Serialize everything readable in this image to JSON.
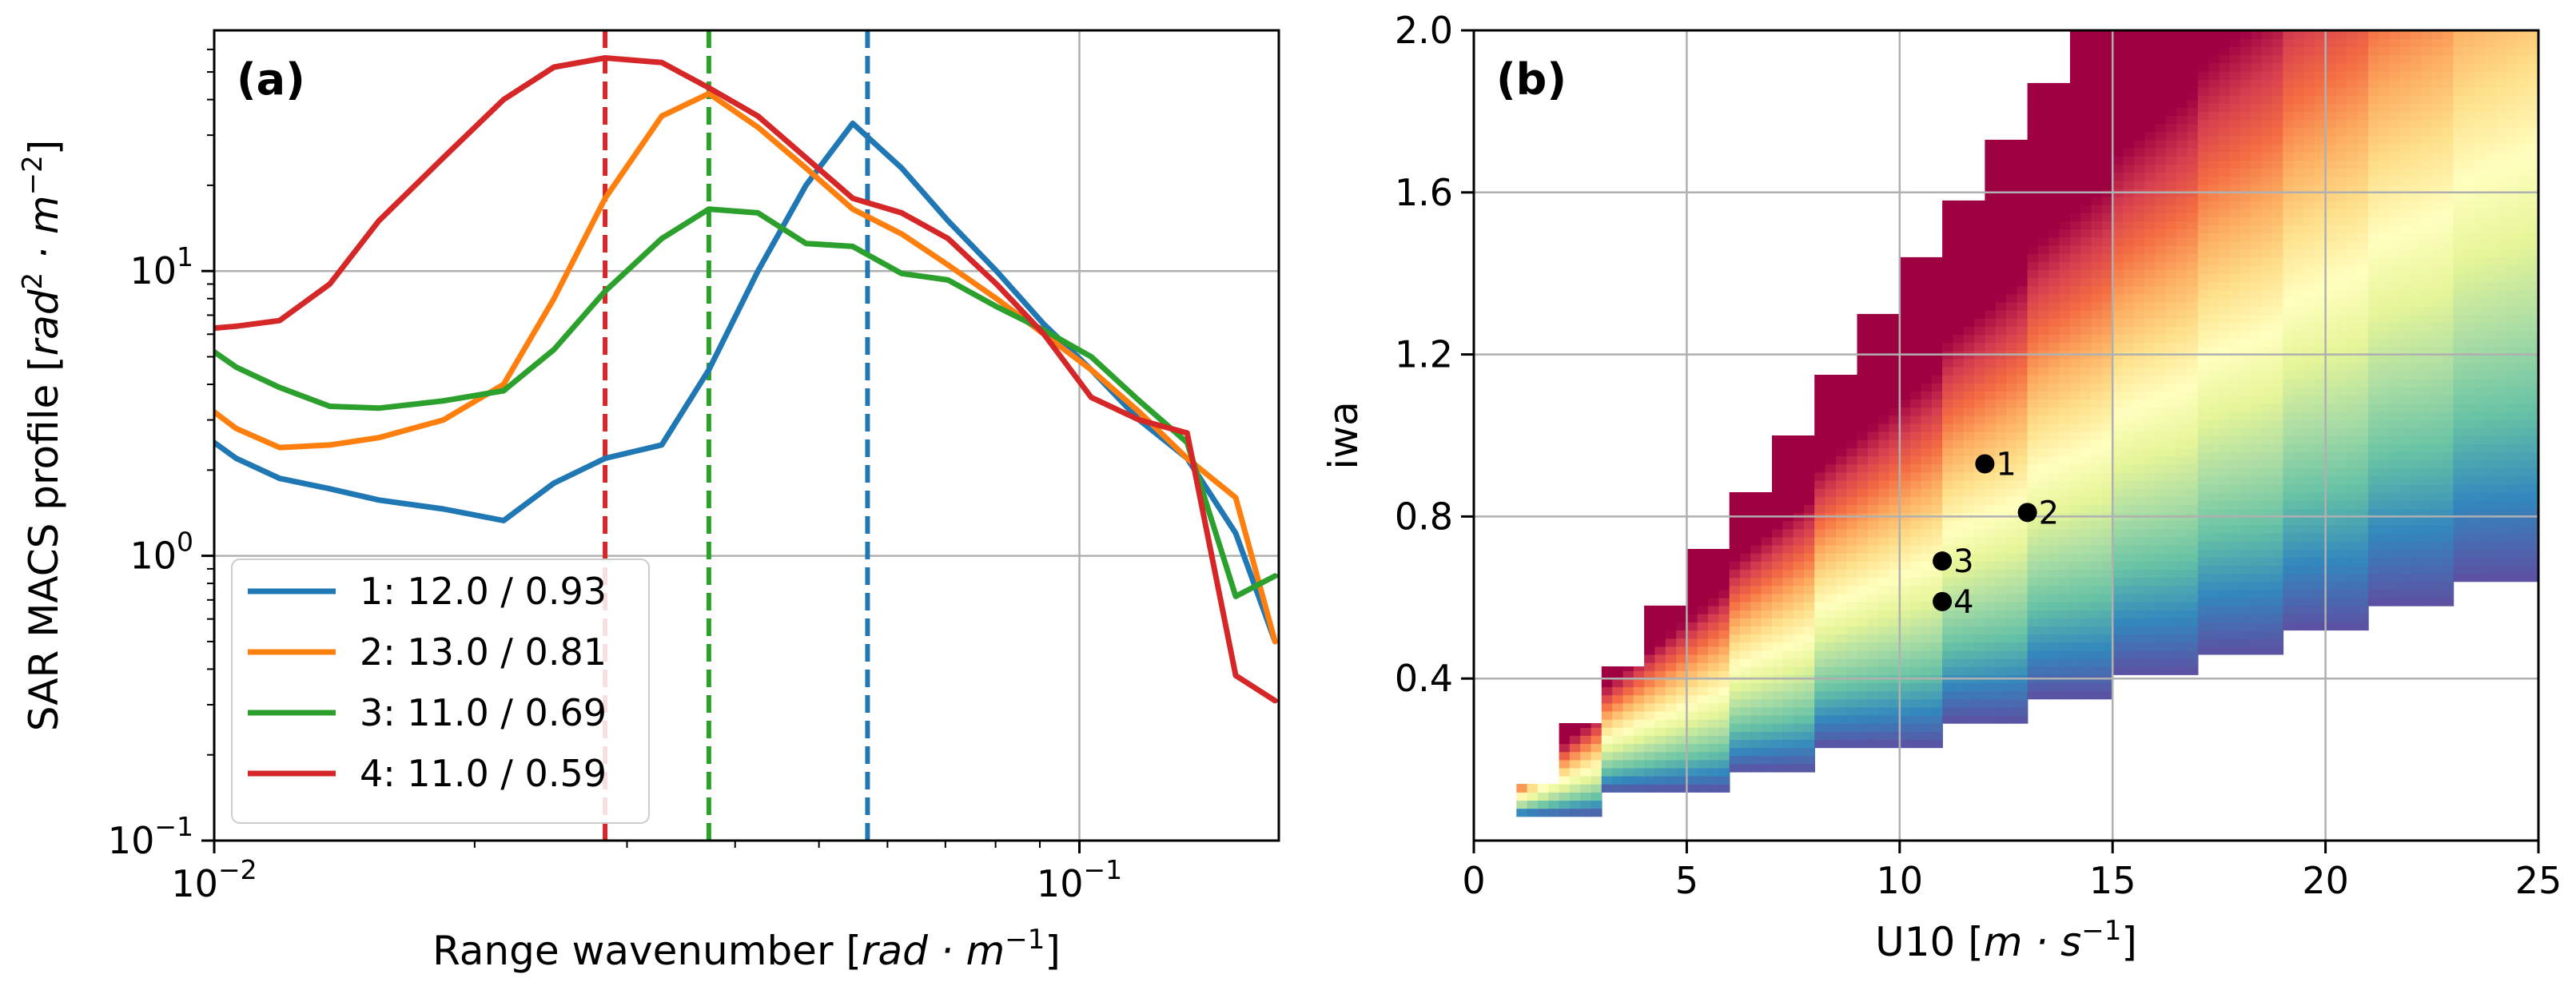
{
  "chart_data": [
    {
      "type": "line",
      "panel_label": "(a)",
      "xscale": "log",
      "yscale": "log",
      "xlim": [
        0.01,
        0.17
      ],
      "ylim": [
        0.1,
        70
      ],
      "grid": true,
      "xlabel_prefix": "Range wavenumber [",
      "xlabel_math": "rad · m",
      "xlabel_sup": "−1",
      "xlabel_suffix": "]",
      "ylabel_prefix": "SAR MACS profile [",
      "ylabel_math1": "rad",
      "ylabel_sup1": "2",
      "ylabel_math2": " · m",
      "ylabel_sup2": "−2",
      "ylabel_suffix": "]",
      "xticks": [
        {
          "value": 0.01,
          "base": "10",
          "exp": "−2"
        },
        {
          "value": 0.1,
          "base": "10",
          "exp": "−1"
        }
      ],
      "yticks": [
        {
          "value": 0.1,
          "base": "10",
          "exp": "−1"
        },
        {
          "value": 1,
          "base": "10",
          "exp": "0"
        },
        {
          "value": 10,
          "base": "10",
          "exp": "1"
        }
      ],
      "x": [
        0.01,
        0.0106,
        0.0119,
        0.0136,
        0.0155,
        0.0184,
        0.0216,
        0.0247,
        0.0283,
        0.0329,
        0.0373,
        0.0425,
        0.0483,
        0.0547,
        0.0623,
        0.0705,
        0.0802,
        0.091,
        0.1032,
        0.1173,
        0.1332,
        0.1516,
        0.1683
      ],
      "series": [
        {
          "name": "1: 12.0 / 0.93",
          "color": "#1f77b4",
          "values": [
            2.5,
            2.2,
            1.87,
            1.72,
            1.57,
            1.46,
            1.33,
            1.8,
            2.2,
            2.45,
            4.5,
            10.0,
            20.0,
            33.0,
            23.0,
            15.0,
            10.0,
            6.5,
            4.5,
            3.0,
            2.2,
            1.2,
            0.5
          ]
        },
        {
          "name": "2: 13.0 / 0.81",
          "color": "#ff7f0e",
          "values": [
            3.2,
            2.8,
            2.4,
            2.45,
            2.6,
            3.0,
            4.0,
            8.0,
            18.0,
            35.0,
            42.0,
            32.0,
            23.0,
            16.5,
            13.5,
            10.5,
            8.0,
            6.0,
            4.5,
            3.2,
            2.2,
            1.6,
            0.5
          ]
        },
        {
          "name": "3: 11.0 / 0.69",
          "color": "#2ca02c",
          "values": [
            5.2,
            4.6,
            3.9,
            3.35,
            3.3,
            3.5,
            3.8,
            5.3,
            8.5,
            13.0,
            16.5,
            16.0,
            12.5,
            12.2,
            9.8,
            9.3,
            7.5,
            6.2,
            5.0,
            3.5,
            2.5,
            0.72,
            0.85
          ]
        },
        {
          "name": "4: 11.0 / 0.59",
          "color": "#d62728",
          "values": [
            6.3,
            6.4,
            6.7,
            9.0,
            15.0,
            25.0,
            40.0,
            52.0,
            56.0,
            54.0,
            44.0,
            35.0,
            25.0,
            18.0,
            16.0,
            13.0,
            9.0,
            6.0,
            3.6,
            3.0,
            2.7,
            0.38,
            0.31
          ]
        }
      ],
      "vlines": [
        {
          "x": 0.0283,
          "color": "#d62728"
        },
        {
          "x": 0.0373,
          "color": "#2ca02c"
        },
        {
          "x": 0.0569,
          "color": "#1f77b4"
        }
      ],
      "legend_position": "lower-left"
    },
    {
      "type": "heatmap",
      "panel_label": "(b)",
      "colormap": "Spectral",
      "xlim": [
        0,
        25
      ],
      "ylim": [
        0,
        2.0
      ],
      "grid": true,
      "xlabel_prefix": "U10 [",
      "xlabel_math": "m · s",
      "xlabel_sup": "−1",
      "xlabel_suffix": "]",
      "ylabel": "iwa",
      "xticks": [
        "0",
        "5",
        "10",
        "15",
        "20",
        "25"
      ],
      "xtick_values": [
        0,
        5,
        10,
        15,
        20,
        25
      ],
      "yticks": [
        "0.4",
        "0.8",
        "1.2",
        "1.6",
        "2.0"
      ],
      "ytick_values": [
        0.4,
        0.8,
        1.2,
        1.6,
        2.0
      ],
      "valid_region": {
        "u10_min": 1,
        "upper_steps": [
          {
            "u_from": 1,
            "u_to": 2,
            "iwa": 0.14
          },
          {
            "u_from": 2,
            "u_to": 3,
            "iwa": 0.29
          },
          {
            "u_from": 3,
            "u_to": 4,
            "iwa": 0.43
          },
          {
            "u_from": 4,
            "u_to": 5,
            "iwa": 0.58
          },
          {
            "u_from": 5,
            "u_to": 6,
            "iwa": 0.72
          },
          {
            "u_from": 6,
            "u_to": 7,
            "iwa": 0.86
          },
          {
            "u_from": 7,
            "u_to": 8,
            "iwa": 1.0
          },
          {
            "u_from": 8,
            "u_to": 9,
            "iwa": 1.15
          },
          {
            "u_from": 9,
            "u_to": 10,
            "iwa": 1.3
          },
          {
            "u_from": 10,
            "u_to": 11,
            "iwa": 1.44
          },
          {
            "u_from": 11,
            "u_to": 12,
            "iwa": 1.58
          },
          {
            "u_from": 12,
            "u_to": 13,
            "iwa": 1.73
          },
          {
            "u_from": 13,
            "u_to": 14,
            "iwa": 1.87
          },
          {
            "u_from": 14,
            "u_to": 25,
            "iwa": 2.0
          }
        ],
        "lower_steps": [
          {
            "u_from": 1,
            "u_to": 3,
            "iwa": 0.06
          },
          {
            "u_from": 3,
            "u_to": 6,
            "iwa": 0.12
          },
          {
            "u_from": 6,
            "u_to": 8,
            "iwa": 0.17
          },
          {
            "u_from": 8,
            "u_to": 11,
            "iwa": 0.23
          },
          {
            "u_from": 11,
            "u_to": 13,
            "iwa": 0.29
          },
          {
            "u_from": 13,
            "u_to": 15,
            "iwa": 0.35
          },
          {
            "u_from": 15,
            "u_to": 17,
            "iwa": 0.41
          },
          {
            "u_from": 17,
            "u_to": 19,
            "iwa": 0.46
          },
          {
            "u_from": 19,
            "u_to": 21,
            "iwa": 0.52
          },
          {
            "u_from": 21,
            "u_to": 23,
            "iwa": 0.58
          },
          {
            "u_from": 23,
            "u_to": 25,
            "iwa": 0.64
          },
          {
            "u_from": 25,
            "u_to": 25,
            "iwa": 0.7
          }
        ]
      },
      "points": [
        {
          "label": "1",
          "u10": 12.0,
          "iwa": 0.93
        },
        {
          "label": "2",
          "u10": 13.0,
          "iwa": 0.81
        },
        {
          "label": "3",
          "u10": 11.0,
          "iwa": 0.69
        },
        {
          "label": "4",
          "u10": 11.0,
          "iwa": 0.59
        }
      ]
    }
  ],
  "colors": {
    "spectral": [
      "#9e0142",
      "#d53e4f",
      "#f46d43",
      "#fdae61",
      "#fee08b",
      "#ffffbf",
      "#e6f598",
      "#abdda4",
      "#66c2a5",
      "#3288bd",
      "#5e4fa2"
    ],
    "grid": "#b0b0b0",
    "point": "#000000"
  }
}
